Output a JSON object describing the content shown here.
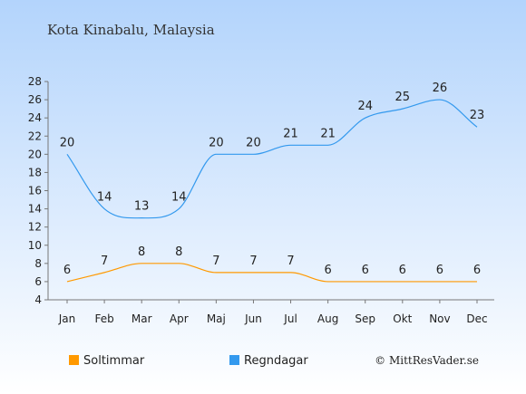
{
  "chart_data": {
    "type": "line",
    "title": "Kota Kinabalu, Malaysia",
    "categories": [
      "Jan",
      "Feb",
      "Mar",
      "Apr",
      "Maj",
      "Jun",
      "Jul",
      "Aug",
      "Sep",
      "Okt",
      "Nov",
      "Dec"
    ],
    "series": [
      {
        "name": "Soltimmar",
        "color": "#ff9900",
        "values": [
          6,
          7,
          8,
          8,
          7,
          7,
          7,
          6,
          6,
          6,
          6,
          6
        ]
      },
      {
        "name": "Regndagar",
        "color": "#3399ee",
        "values": [
          20,
          14,
          13,
          14,
          20,
          20,
          21,
          21,
          24,
          25,
          26,
          23
        ]
      }
    ],
    "yticks": [
      4,
      6,
      8,
      10,
      12,
      14,
      16,
      18,
      20,
      22,
      24,
      26,
      28
    ],
    "ylim": [
      4,
      28
    ],
    "grid": false,
    "legend_position": "bottom-left",
    "credit": "© MittResVader.se",
    "background_gradient": [
      "#b3d4fc",
      "#ffffff"
    ]
  }
}
